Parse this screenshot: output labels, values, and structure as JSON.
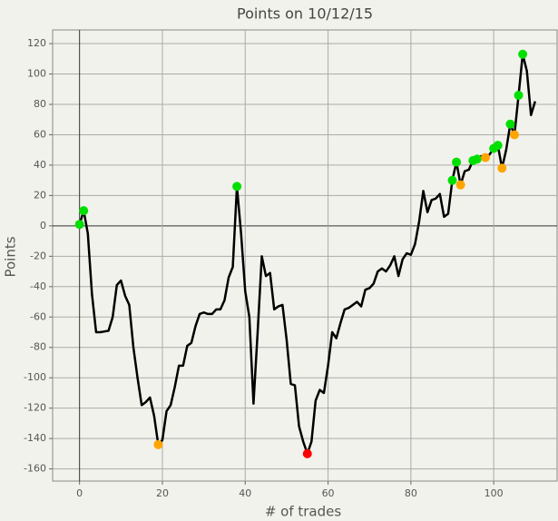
{
  "chart_data": {
    "type": "line",
    "title": "Points on 10/12/15",
    "x_label": "# of trades",
    "y_label": "Points",
    "xlim": [
      -6.5,
      115.3
    ],
    "xticks": [
      0,
      20,
      40,
      60,
      80,
      100
    ],
    "ylim": [
      -168,
      129
    ],
    "yticks": [
      -160,
      -140,
      -120,
      -100,
      -80,
      -60,
      -40,
      -20,
      0,
      20,
      40,
      60,
      80,
      100,
      120
    ],
    "grid": true,
    "series": [
      {
        "name": "Points",
        "color": "#000000",
        "x": [
          0,
          1,
          2,
          3,
          4,
          5,
          6,
          7,
          8,
          9,
          10,
          11,
          12,
          13,
          14,
          15,
          16,
          17,
          18,
          19,
          20,
          21,
          22,
          23,
          24,
          25,
          26,
          27,
          28,
          29,
          30,
          31,
          32,
          33,
          34,
          35,
          36,
          37,
          38,
          39,
          40,
          41,
          42,
          43,
          44,
          45,
          46,
          47,
          48,
          49,
          50,
          51,
          52,
          53,
          54,
          55,
          56,
          57,
          58,
          59,
          60,
          61,
          62,
          63,
          64,
          65,
          66,
          67,
          68,
          69,
          70,
          71,
          72,
          73,
          74,
          75,
          76,
          77,
          78,
          79,
          80,
          81,
          82,
          83,
          84,
          85,
          86,
          87,
          88,
          89,
          90,
          91,
          92,
          93,
          94,
          95,
          96,
          97,
          98,
          99,
          100,
          101,
          102,
          103,
          104,
          105,
          106,
          107,
          108,
          109,
          110
        ],
        "values": [
          1,
          10,
          -5,
          -45,
          -70,
          -70,
          -69.5,
          -69,
          -60,
          -39,
          -36,
          -46,
          -52,
          -80,
          -100,
          -118,
          -116,
          -113,
          -125,
          -144,
          -141,
          -122,
          -118,
          -106,
          -92,
          -92,
          -79,
          -77,
          -66,
          -58,
          -57,
          -58,
          -58,
          -55,
          -55,
          -49,
          -34,
          -27,
          26,
          -5,
          -43,
          -60,
          -117,
          -70,
          -20,
          -33,
          -31,
          -55,
          -53,
          -52,
          -75,
          -104,
          -105,
          -132,
          -142,
          -150,
          -142,
          -115,
          -108,
          -110,
          -92,
          -70,
          -74,
          -64,
          -55,
          -54,
          -52,
          -50,
          -53,
          -42,
          -41,
          -38,
          -30,
          -28,
          -30,
          -26,
          -20,
          -33,
          -22,
          -18,
          -19,
          -12,
          3,
          23,
          9,
          17,
          18,
          21,
          6,
          8,
          30,
          42,
          27,
          36,
          37,
          43,
          44,
          46,
          45,
          47,
          51,
          53,
          38,
          50,
          67,
          60,
          86,
          113,
          102,
          73,
          82
        ]
      }
    ],
    "markers": {
      "x": [
        0,
        1,
        19,
        38,
        55,
        90,
        91,
        92,
        95,
        96,
        98,
        100,
        101,
        102,
        104,
        105,
        106,
        107
      ],
      "values": [
        1,
        10,
        -144,
        26,
        -150,
        30,
        42,
        27,
        43,
        44,
        45,
        51,
        53,
        38,
        67,
        60,
        86,
        113
      ],
      "colors": [
        "#00e000",
        "#00e000",
        "#ffa500",
        "#00e000",
        "#ff0000",
        "#00e000",
        "#00e000",
        "#ffa500",
        "#00e000",
        "#00e000",
        "#ffa500",
        "#00e000",
        "#00e000",
        "#ffa500",
        "#00e000",
        "#ffa500",
        "#00e000",
        "#00e000"
      ]
    }
  }
}
